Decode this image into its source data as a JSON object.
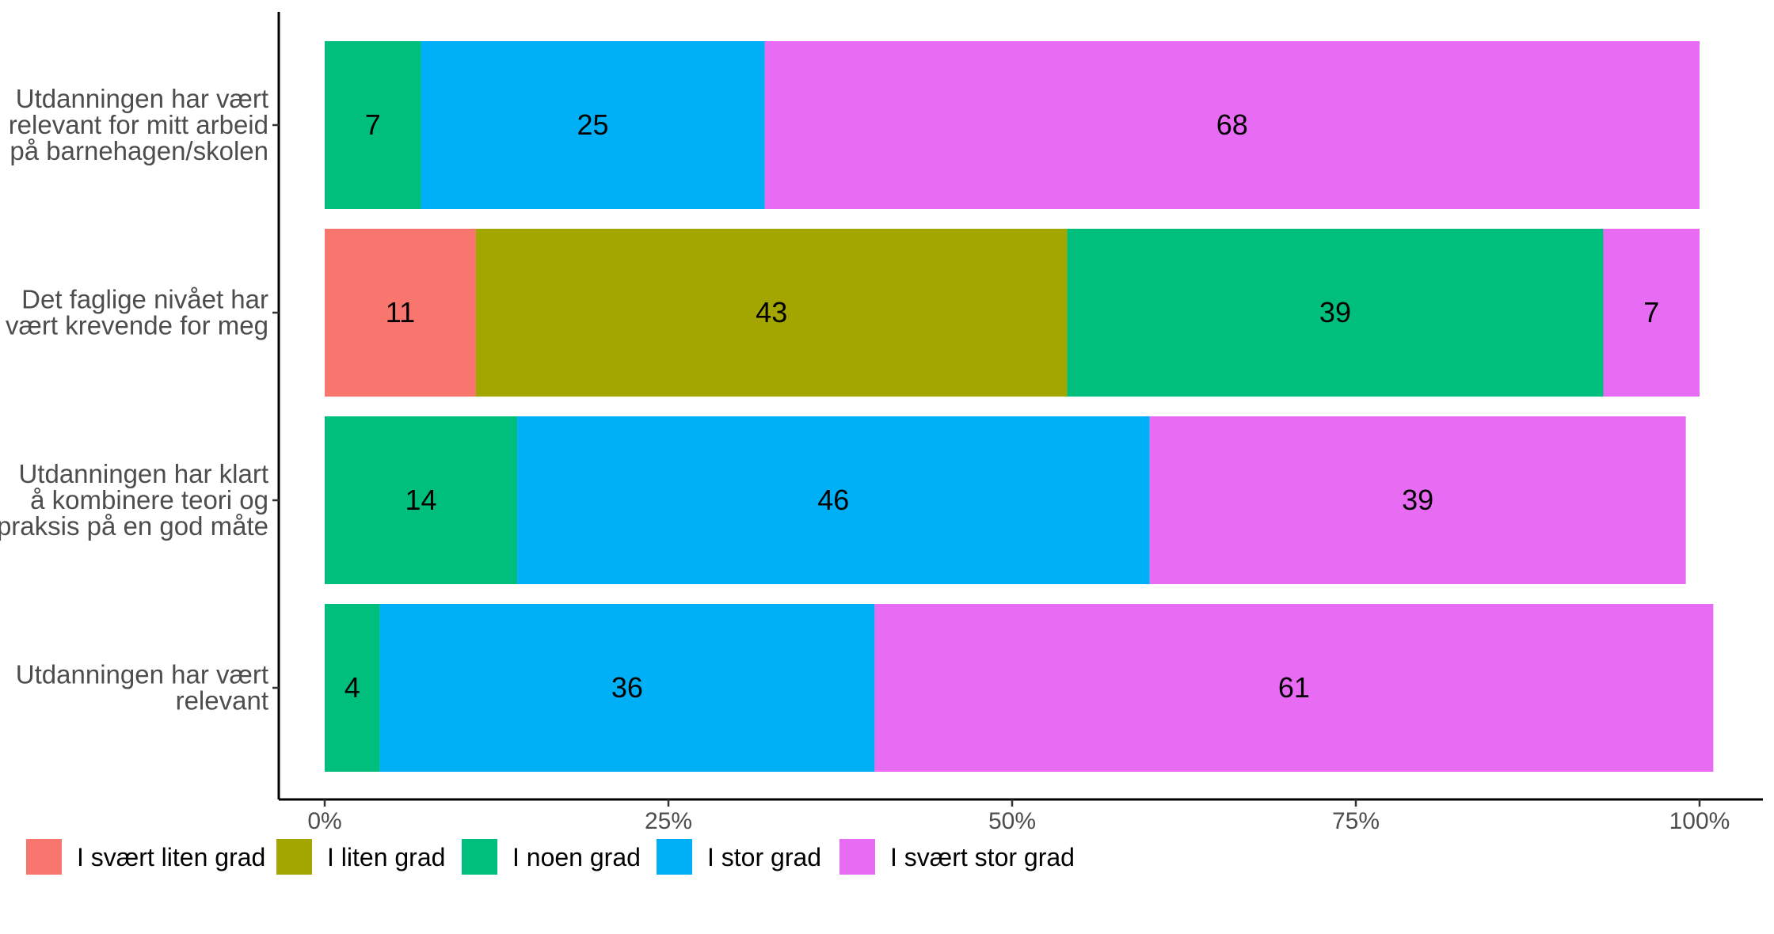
{
  "chart_data": {
    "type": "bar",
    "orientation": "horizontal",
    "stacked": true,
    "categories": [
      [
        "Utdanningen har vært",
        "relevant for mitt arbeid",
        "på barnehagen/skolen"
      ],
      [
        "Det faglige nivået har",
        "vært krevende for meg"
      ],
      [
        "Utdanningen har klart",
        "å kombinere teori og",
        "praksis på en god måte"
      ],
      [
        "Utdanningen har vært",
        "relevant"
      ]
    ],
    "series": [
      {
        "name": "I svært liten grad",
        "color": "#F8766D",
        "values": [
          0,
          11,
          0,
          0
        ]
      },
      {
        "name": "I liten grad",
        "color": "#A3A500",
        "values": [
          0,
          43,
          0,
          0
        ]
      },
      {
        "name": "I noen grad",
        "color": "#00BF7D",
        "values": [
          7,
          39,
          14,
          4
        ]
      },
      {
        "name": "I stor grad",
        "color": "#00B0F6",
        "values": [
          25,
          0,
          46,
          36
        ]
      },
      {
        "name": "I svært stor grad",
        "color": "#E76BF3",
        "values": [
          68,
          7,
          39,
          61
        ]
      }
    ],
    "x_ticks": [
      "0%",
      "25%",
      "50%",
      "75%",
      "100%"
    ],
    "xlim": [
      0,
      100
    ],
    "grid": false,
    "legend_position": "bottom"
  }
}
